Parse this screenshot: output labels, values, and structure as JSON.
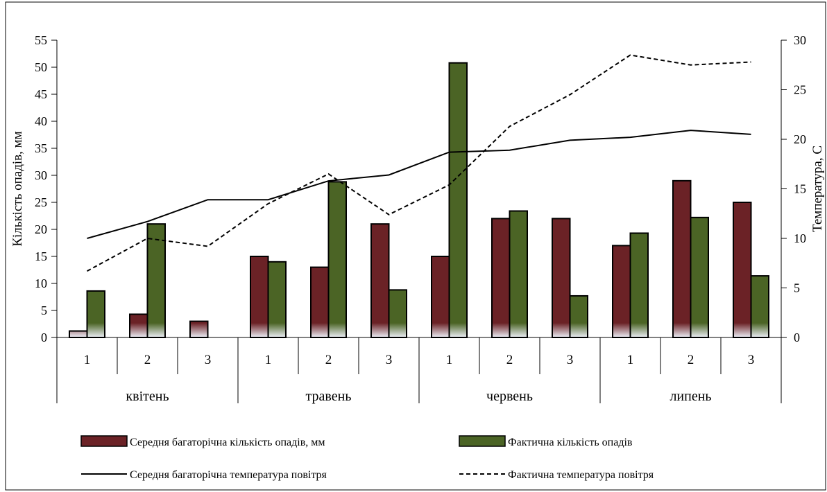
{
  "chart_data": {
    "type": "bar",
    "months": [
      "квітень",
      "травень",
      "червень",
      "липень"
    ],
    "categories": [
      "1",
      "2",
      "3",
      "1",
      "2",
      "3",
      "1",
      "2",
      "3",
      "1",
      "2",
      "3"
    ],
    "ylabel_left": "Кількість опадів, мм",
    "ylabel_right": "Температура, С",
    "ylim_left": [
      0,
      55
    ],
    "ylim_right": [
      0,
      30
    ],
    "yticks_left": [
      "0",
      "5",
      "10",
      "15",
      "20",
      "25",
      "30",
      "35",
      "40",
      "45",
      "50",
      "55"
    ],
    "yticks_right": [
      "0",
      "5",
      "10",
      "15",
      "20",
      "25",
      "30"
    ],
    "grid": false,
    "legend_position": "bottom",
    "series": [
      {
        "name": "Середня багаторічна кількість опадів, мм",
        "kind": "bar",
        "axis": "left",
        "color": "#6b2226",
        "values": [
          1.2,
          4.3,
          3.0,
          15,
          13,
          21,
          15,
          22,
          22,
          17,
          29,
          25
        ]
      },
      {
        "name": "Фактична кількість опадів",
        "kind": "bar",
        "axis": "left",
        "color": "#4b6425",
        "values": [
          8.6,
          21,
          0,
          14,
          28.8,
          8.8,
          50.8,
          23.4,
          7.7,
          19.3,
          22.2,
          11.4
        ]
      },
      {
        "name": "Середня багаторічна температура повітря",
        "kind": "line",
        "axis": "right",
        "style": "solid",
        "color": "#000000",
        "values": [
          10.0,
          11.7,
          13.9,
          13.9,
          15.8,
          16.4,
          18.7,
          18.9,
          19.9,
          20.2,
          20.9,
          20.5
        ]
      },
      {
        "name": "Фактична температура повітря",
        "kind": "line",
        "axis": "right",
        "style": "dashed",
        "color": "#000000",
        "values": [
          6.7,
          10.0,
          9.2,
          13.5,
          16.5,
          12.4,
          15.4,
          21.3,
          24.5,
          28.5,
          27.5,
          27.8
        ]
      }
    ]
  }
}
